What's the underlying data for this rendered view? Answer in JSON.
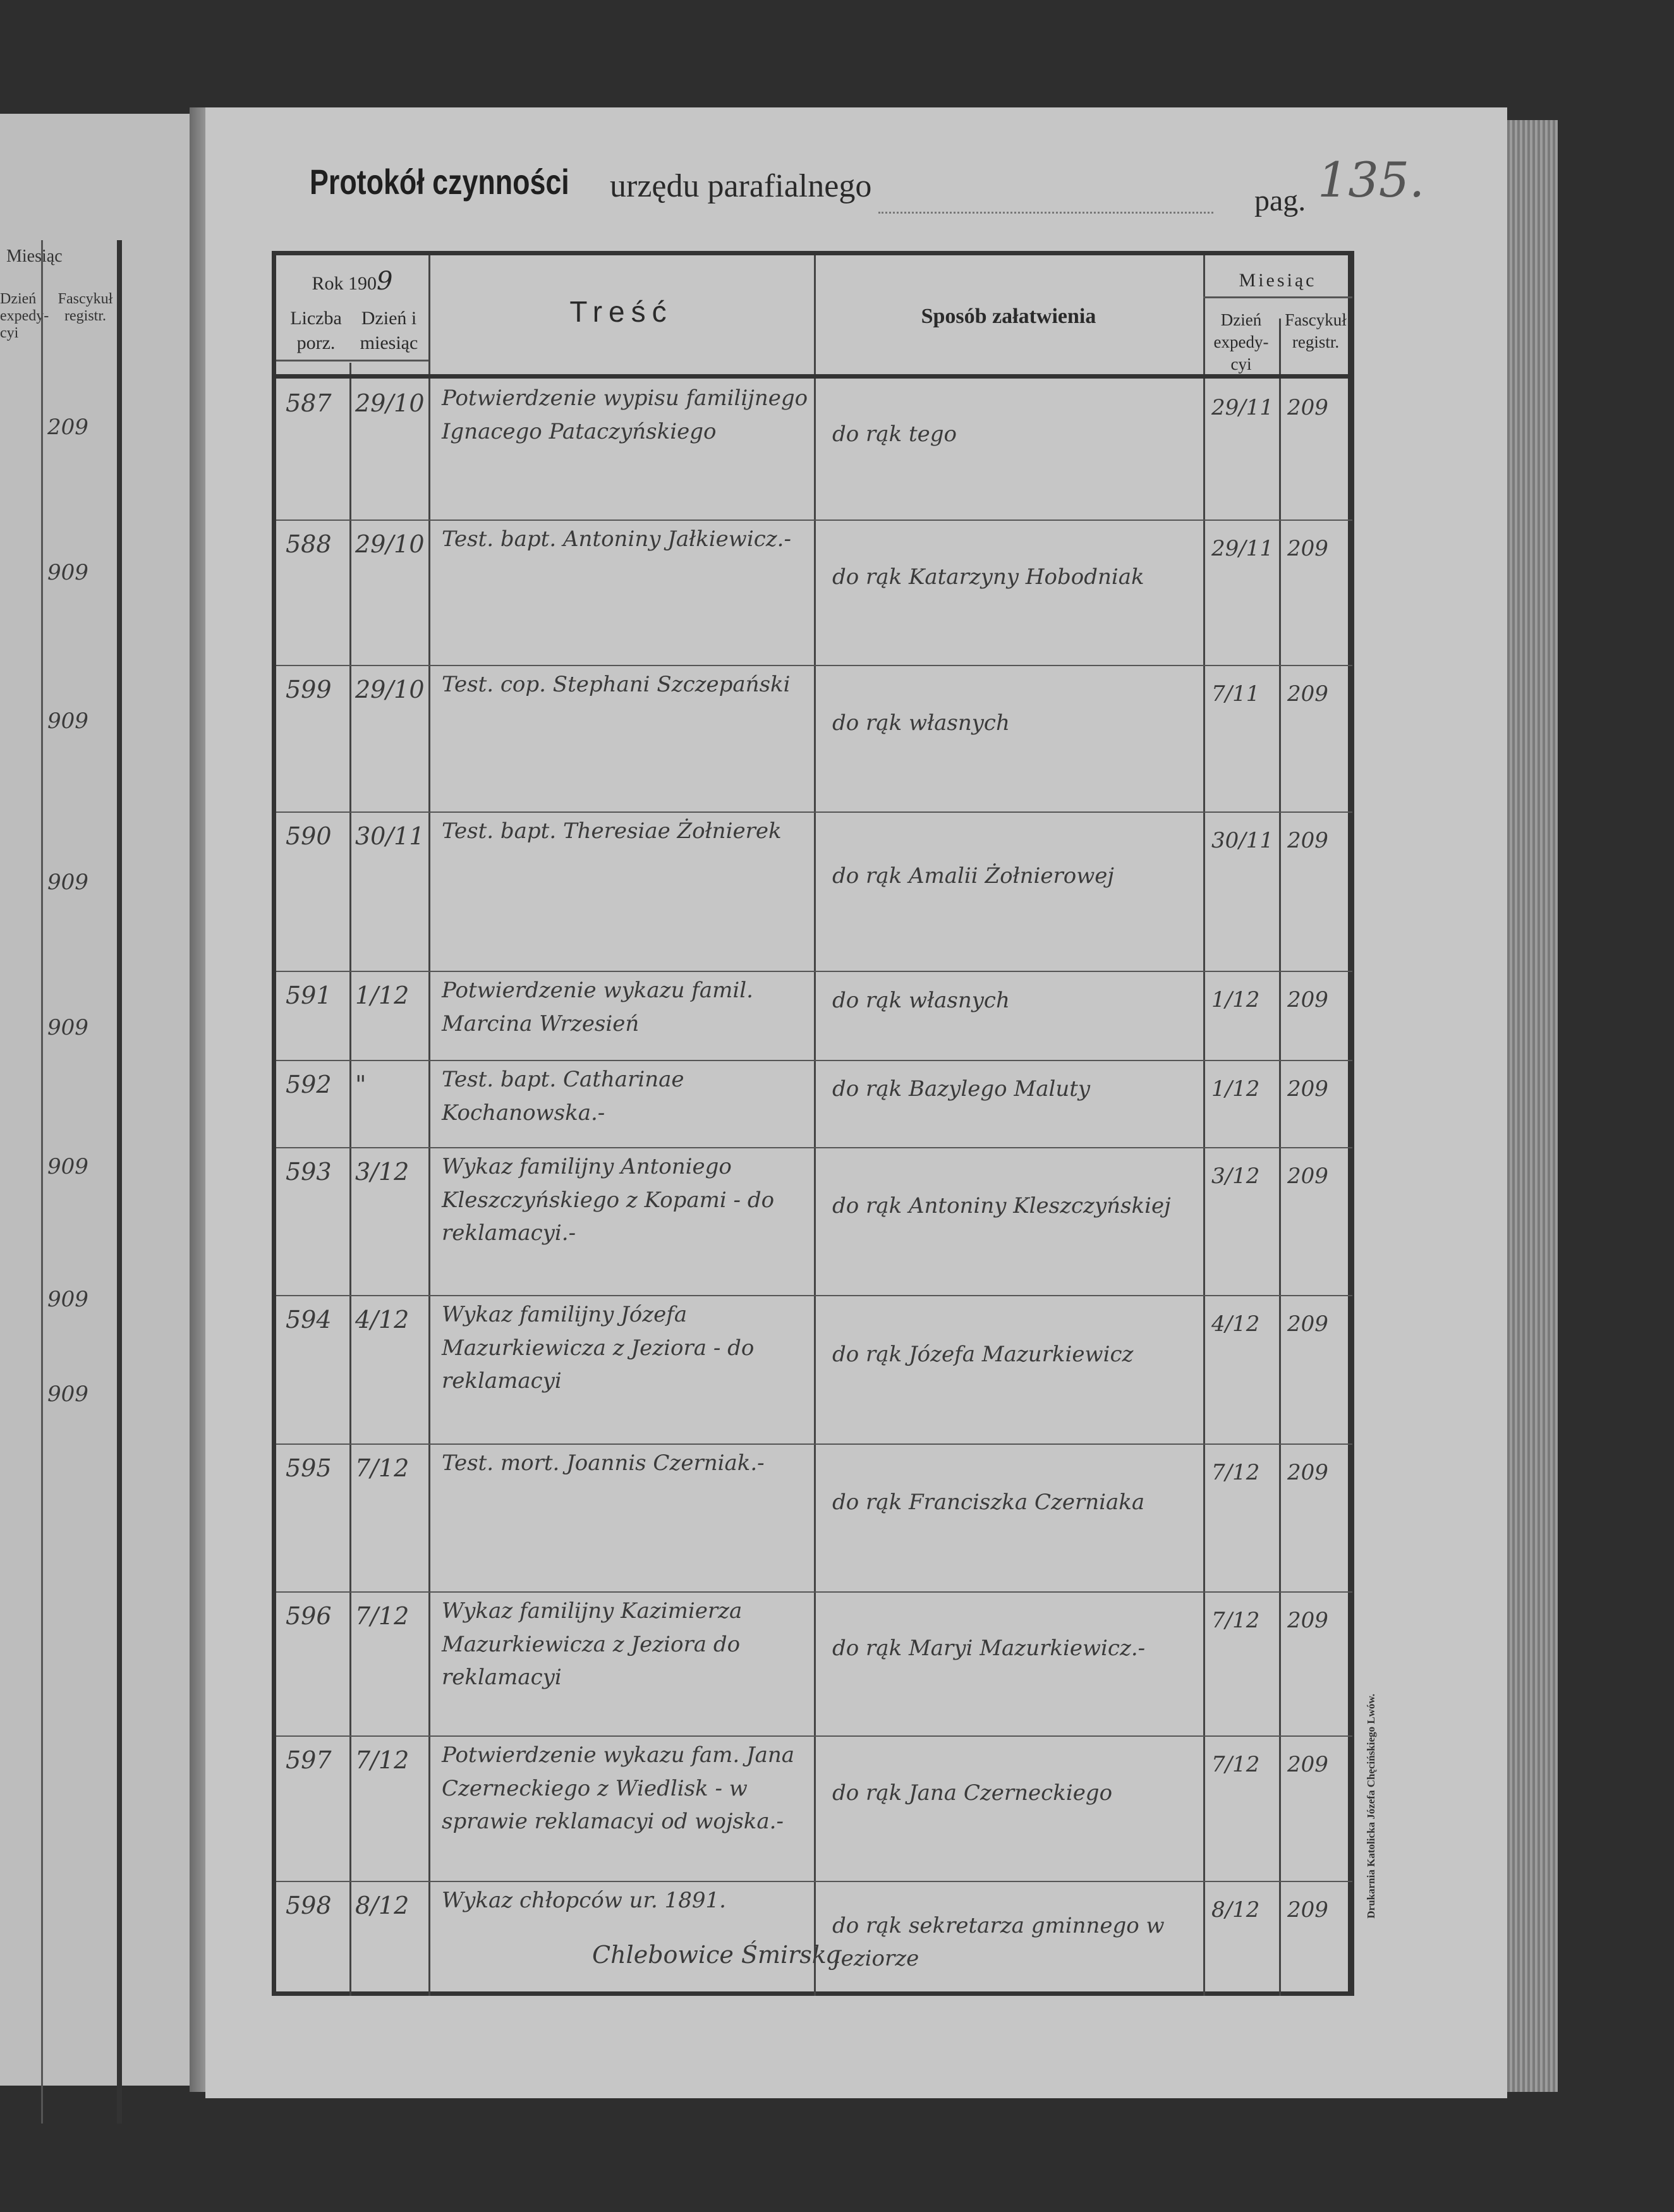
{
  "header": {
    "title_bold": "Protokół czynności",
    "title_rest": "urzędu parafialnego",
    "page_label": "pag.",
    "page_number": "135."
  },
  "table_header": {
    "year_label": "Rok 190",
    "year_handwritten": "9",
    "col_number": "Liczba porz.",
    "col_date": "Dzień i miesiąc",
    "col_content": "Treść",
    "col_handling": "Sposób załatwienia",
    "col_month_group": "Miesiąc",
    "col_dispatch_day": "Dzień expedy- cyi",
    "col_fascicle": "Fascykuł registr."
  },
  "rows": [
    {
      "no": "587",
      "date": "29/10",
      "content": "Potwierdzenie wypisu familijnego Ignacego Pataczyńskiego",
      "handling": "do rąk tego",
      "dispatch": "29/11",
      "fascicle": "209"
    },
    {
      "no": "588",
      "date": "29/10",
      "content": "Test. bapt. Antoniny Jałkiewicz.-",
      "handling": "do rąk Katarzyny Hobodniak",
      "dispatch": "29/11",
      "fascicle": "209"
    },
    {
      "no": "599",
      "date": "29/10",
      "content": "Test. cop. Stephani Szczepański",
      "handling": "do rąk własnych",
      "dispatch": "7/11",
      "fascicle": "209"
    },
    {
      "no": "590",
      "date": "30/11",
      "content": "Test. bapt. Theresiae Żołnierek",
      "handling": "do rąk Amalii Żołnierowej",
      "dispatch": "30/11",
      "fascicle": "209"
    },
    {
      "no": "591",
      "date": "1/12",
      "content": "Potwierdzenie wykazu famil. Marcina Wrzesień",
      "handling": "do rąk własnych",
      "dispatch": "1/12",
      "fascicle": "209"
    },
    {
      "no": "592",
      "date": "\"",
      "content": "Test. bapt. Catharinae Kochanowska.-",
      "handling": "do rąk Bazylego Maluty",
      "dispatch": "1/12",
      "fascicle": "209"
    },
    {
      "no": "593",
      "date": "3/12",
      "content": "Wykaz familijny Antoniego Kleszczyńskiego z Kopami - do reklamacyi.-",
      "handling": "do rąk Antoniny Kleszczyńskiej",
      "dispatch": "3/12",
      "fascicle": "209"
    },
    {
      "no": "594",
      "date": "4/12",
      "content": "Wykaz familijny Józefa Mazurkiewicza z Jeziora - do reklamacyi",
      "handling": "do rąk Józefa Mazurkiewicz",
      "dispatch": "4/12",
      "fascicle": "209"
    },
    {
      "no": "595",
      "date": "7/12",
      "content": "Test. mort. Joannis Czerniak.-",
      "handling": "do rąk Franciszka Czerniaka",
      "dispatch": "7/12",
      "fascicle": "209"
    },
    {
      "no": "596",
      "date": "7/12",
      "content": "Wykaz familijny Kazimierza Mazurkiewicza z Jeziora do reklamacyi",
      "handling": "do rąk Maryi Mazurkiewicz.-",
      "dispatch": "7/12",
      "fascicle": "209"
    },
    {
      "no": "597",
      "date": "7/12",
      "content": "Potwierdzenie wykazu fam. Jana Czerneckiego z Wiedlisk - w sprawie reklamacyi od wojska.-",
      "handling": "do rąk Jana Czerneckiego",
      "dispatch": "7/12",
      "fascicle": "209"
    },
    {
      "no": "598",
      "date": "8/12",
      "content": "Wykaz chłopców ur. 1891.",
      "handling": "do rąk sekretarza gminnego w Jeziorze",
      "dispatch": "8/12",
      "fascicle": "209"
    }
  ],
  "footnote_handwritten": "Chlebowice Śmirska",
  "imprint": "Drukarnia Katolicka Józefa Chęcińskiego Lwów.",
  "left_page": {
    "month_label": "Miesiąc",
    "dispatch_label": "Dzień expedy- cyi",
    "fascicle_label": "Fascykuł registr.",
    "fascicle_values": [
      "209",
      "909",
      "909",
      "909",
      "909",
      "909",
      "909",
      "909"
    ]
  }
}
